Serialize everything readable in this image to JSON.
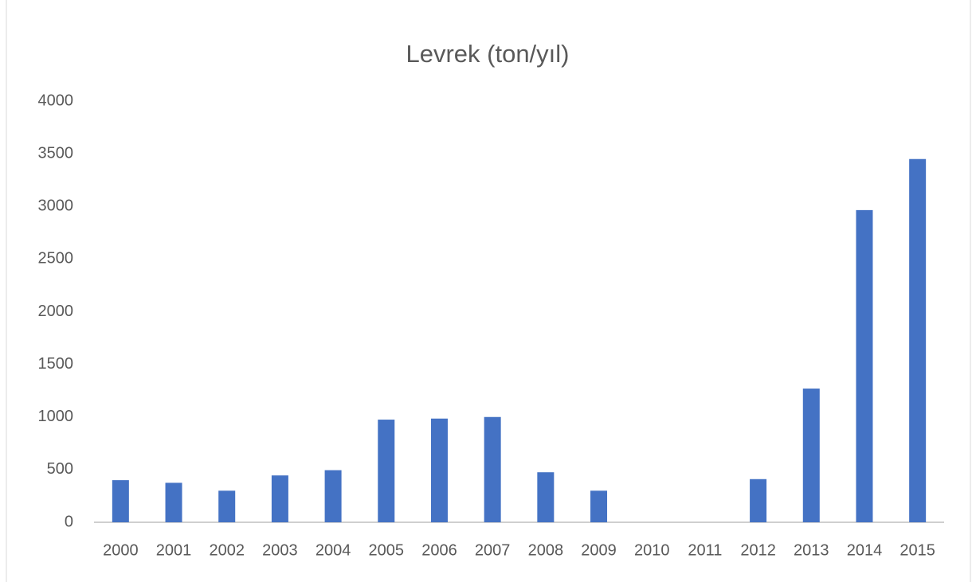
{
  "chart_data": {
    "type": "bar",
    "title": "Levrek (ton/yıl)",
    "categories": [
      "2000",
      "2001",
      "2002",
      "2003",
      "2004",
      "2005",
      "2006",
      "2007",
      "2008",
      "2009",
      "2010",
      "2011",
      "2012",
      "2013",
      "2014",
      "2015"
    ],
    "values": [
      400,
      375,
      300,
      445,
      495,
      975,
      985,
      1000,
      475,
      300,
      0,
      0,
      410,
      1270,
      2965,
      3450
    ],
    "color": "#4472c4",
    "ylim": [
      0,
      4000
    ],
    "yticks": [
      0,
      500,
      1000,
      1500,
      2000,
      2500,
      3000,
      3500,
      4000
    ],
    "grid": false
  }
}
